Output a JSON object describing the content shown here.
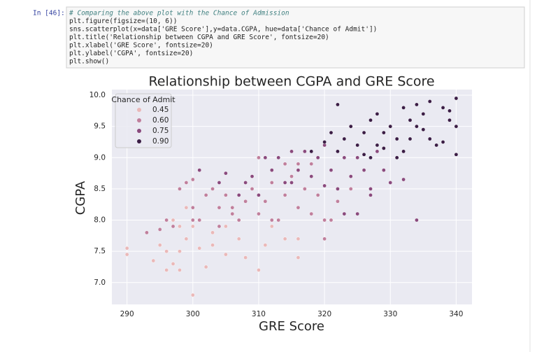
{
  "prompt": "In [46]:",
  "code": [
    "# Comparing the above plot with the Chance of Admission",
    "plt.figure(figsize=(10, 6))",
    "sns.scatterplot(x=data['GRE Score'],y=data.CGPA, hue=data['Chance of Admit'])",
    "plt.title('Relationship between CGPA and GRE Score', fontsize=20)",
    "plt.xlabel('GRE Score', fontsize=20)",
    "plt.ylabel('CGPA', fontsize=20)",
    "plt.show()"
  ],
  "chart_data": {
    "type": "scatter",
    "title": "Relationship between CGPA and GRE Score",
    "xlabel": "GRE Score",
    "ylabel": "CGPA",
    "legend_title": "Chance of Admit",
    "legend": "upper left",
    "grid": true,
    "xlim": [
      287.7,
      342.4
    ],
    "ylim": [
      6.65,
      10.09
    ],
    "xticks": [
      290,
      300,
      310,
      320,
      330,
      340
    ],
    "yticks": [
      {
        "value": 7,
        "label": "7.0"
      },
      7.5,
      {
        "value": 8,
        "label": "8.0"
      },
      8.5,
      {
        "value": 9,
        "label": "9.0"
      },
      9.5,
      {
        "value": 10,
        "label": "10.0"
      }
    ],
    "series": [
      {
        "name": "0.45",
        "color": "#eab8b8",
        "x": [
          290,
          290,
          294,
          295,
          296,
          297,
          298,
          298,
          299,
          300,
          301,
          302,
          303,
          305,
          308,
          310,
          311,
          316,
          297,
          299,
          300,
          305,
          296,
          303,
          307,
          312,
          314,
          316,
          298,
          299
        ],
        "values": [
          7.55,
          7.45,
          7.35,
          7.6,
          7.2,
          7.3,
          7.2,
          7.9,
          7.7,
          6.8,
          7.55,
          7.25,
          7.6,
          7.45,
          7.4,
          7.2,
          7.6,
          7.4,
          8.0,
          8.2,
          7.9,
          7.9,
          7.5,
          7.8,
          7.7,
          7.9,
          7.7,
          7.7,
          7.5,
          8.6
        ]
      },
      {
        "name": "0.60",
        "color": "#c07f9c",
        "x": [
          293,
          295,
          296,
          297,
          298,
          299,
          300,
          300,
          301,
          302,
          303,
          304,
          305,
          306,
          307,
          308,
          309,
          310,
          310,
          311,
          312,
          313,
          314,
          315,
          316,
          317,
          318,
          319,
          320,
          320,
          322,
          324,
          300,
          304,
          306,
          312,
          314,
          316,
          318,
          321
        ],
        "values": [
          7.8,
          7.85,
          8.0,
          7.9,
          8.5,
          8.6,
          8.65,
          8.2,
          8.0,
          8.4,
          8.5,
          8.2,
          8.4,
          8.1,
          8.0,
          8.3,
          8.5,
          8.1,
          9.0,
          8.3,
          8.6,
          8.0,
          8.4,
          8.7,
          8.2,
          8.5,
          8.9,
          8.4,
          8.0,
          7.7,
          8.3,
          8.5,
          8.0,
          7.9,
          8.2,
          8.0,
          8.9,
          8.9,
          8.1,
          8.0
        ]
      },
      {
        "name": "0.75",
        "color": "#8a4a7d",
        "x": [
          301,
          304,
          305,
          307,
          308,
          309,
          310,
          311,
          312,
          313,
          314,
          315,
          316,
          317,
          318,
          319,
          320,
          321,
          322,
          323,
          324,
          325,
          326,
          327,
          328,
          329,
          330,
          332,
          334,
          325,
          327,
          320,
          323,
          315
        ],
        "values": [
          8.8,
          8.6,
          8.75,
          8.4,
          8.6,
          8.7,
          8.4,
          9.0,
          8.8,
          9.0,
          8.6,
          9.1,
          8.8,
          9.1,
          8.7,
          9.0,
          9.2,
          8.8,
          8.5,
          9.0,
          8.7,
          9.0,
          8.8,
          8.5,
          9.1,
          8.8,
          8.6,
          8.65,
          8.0,
          8.1,
          8.4,
          8.55,
          8.1,
          8.6
        ]
      },
      {
        "name": "0.90",
        "color": "#3b1d45",
        "x": [
          318,
          320,
          321,
          322,
          322,
          323,
          324,
          325,
          326,
          327,
          328,
          329,
          330,
          331,
          332,
          333,
          334,
          335,
          336,
          337,
          338,
          339,
          340,
          340,
          340,
          334,
          335,
          339,
          331,
          329,
          336,
          332,
          328,
          326,
          327,
          333,
          338
        ],
        "values": [
          9.1,
          9.25,
          9.4,
          9.85,
          9.1,
          9.3,
          9.5,
          9.2,
          9.4,
          9.6,
          9.7,
          9.4,
          9.5,
          9.3,
          9.8,
          9.6,
          9.5,
          9.7,
          9.9,
          9.2,
          9.8,
          9.6,
          9.95,
          9.05,
          9.5,
          9.85,
          9.45,
          9.75,
          9.0,
          9.15,
          9.3,
          9.1,
          9.2,
          9.05,
          9.0,
          9.3,
          9.25
        ]
      }
    ]
  }
}
